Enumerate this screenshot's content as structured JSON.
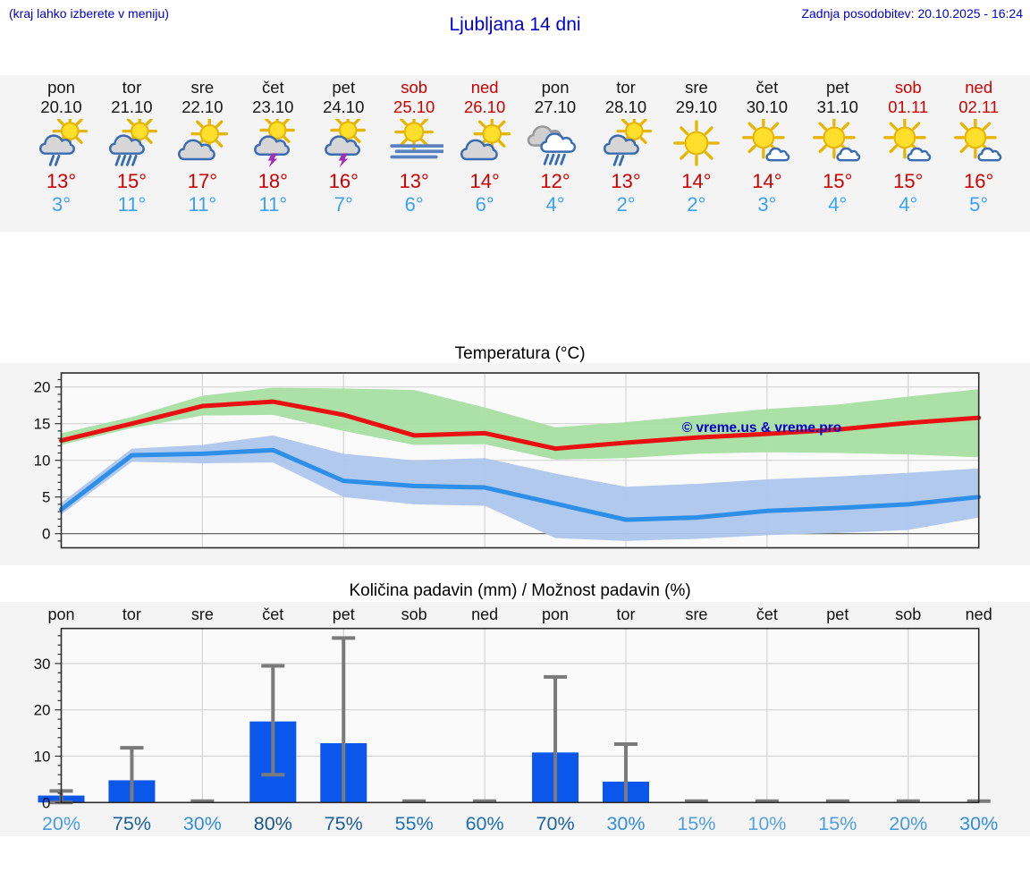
{
  "header": {
    "menu_hint": "(kraj lahko izberete v meniju)",
    "title": "Ljubljana 14 dni",
    "last_update": "Zadnja posodobitev: 20.10.2025 - 16:24",
    "text_color": "#0000cc"
  },
  "watermark": "© vreme.us & vreme.pro",
  "colors": {
    "panel_bg": "#f4f4f4",
    "plot_bg": "#fafafa",
    "grid": "#d4d4d4",
    "frame": "#2b2b2b",
    "tmax_text": "#cc0000",
    "tmin_text": "#3aa2f2",
    "weekend_text": "#cc0000",
    "max_line": "#e81010",
    "min_line": "#2d8fe8",
    "max_band": "#a7dfa2",
    "min_band": "#aec6ed",
    "bar": "#0b57eb",
    "whisker": "#7a7a7a"
  },
  "days": [
    {
      "name": "pon",
      "date": "20.10",
      "weekend": false,
      "icon": "sun-cloud-rain",
      "tmax": "13°",
      "tmin": "3°"
    },
    {
      "name": "tor",
      "date": "21.10",
      "weekend": false,
      "icon": "sun-cloud-heavy-rain",
      "tmax": "15°",
      "tmin": "11°"
    },
    {
      "name": "sre",
      "date": "22.10",
      "weekend": false,
      "icon": "sun-cloud",
      "tmax": "17°",
      "tmin": "11°"
    },
    {
      "name": "čet",
      "date": "23.10",
      "weekend": false,
      "icon": "sun-cloud-storm",
      "tmax": "18°",
      "tmin": "11°"
    },
    {
      "name": "pet",
      "date": "24.10",
      "weekend": false,
      "icon": "sun-cloud-storm",
      "tmax": "16°",
      "tmin": "7°"
    },
    {
      "name": "sob",
      "date": "25.10",
      "weekend": true,
      "icon": "sun-fog",
      "tmax": "13°",
      "tmin": "6°"
    },
    {
      "name": "ned",
      "date": "26.10",
      "weekend": true,
      "icon": "sun-cloud",
      "tmax": "14°",
      "tmin": "6°"
    },
    {
      "name": "pon",
      "date": "27.10",
      "weekend": false,
      "icon": "cloud-rain",
      "tmax": "12°",
      "tmin": "4°"
    },
    {
      "name": "tor",
      "date": "28.10",
      "weekend": false,
      "icon": "sun-cloud-rain",
      "tmax": "13°",
      "tmin": "2°"
    },
    {
      "name": "sre",
      "date": "29.10",
      "weekend": false,
      "icon": "sun",
      "tmax": "14°",
      "tmin": "2°"
    },
    {
      "name": "čet",
      "date": "30.10",
      "weekend": false,
      "icon": "sun-small-cloud",
      "tmax": "14°",
      "tmin": "3°"
    },
    {
      "name": "pet",
      "date": "31.10",
      "weekend": false,
      "icon": "sun-small-cloud",
      "tmax": "15°",
      "tmin": "4°"
    },
    {
      "name": "sob",
      "date": "01.11",
      "weekend": true,
      "icon": "sun-small-cloud",
      "tmax": "15°",
      "tmin": "4°"
    },
    {
      "name": "ned",
      "date": "02.11",
      "weekend": true,
      "icon": "sun-small-cloud",
      "tmax": "16°",
      "tmin": "5°"
    }
  ],
  "chart_data": [
    {
      "type": "line",
      "title": "Temperatura (°C)",
      "categories": [
        "pon 20.10",
        "tor 21.10",
        "sre 22.10",
        "čet 23.10",
        "pet 24.10",
        "sob 25.10",
        "ned 26.10",
        "pon 27.10",
        "tor 28.10",
        "sre 29.10",
        "čet 30.10",
        "pet 31.10",
        "sob 01.11",
        "ned 02.11"
      ],
      "y_ticks": [
        0,
        5,
        10,
        15,
        20
      ],
      "ylim": [
        -1.9,
        21.9
      ],
      "grid": true,
      "series": [
        {
          "name": "max-temp",
          "color": "#e81010",
          "values": [
            12.7,
            15.0,
            17.4,
            18.0,
            16.2,
            13.4,
            13.7,
            11.6,
            12.4,
            13.1,
            13.6,
            14.2,
            15.1,
            15.8
          ]
        },
        {
          "name": "min-temp",
          "color": "#2d8fe8",
          "values": [
            3.3,
            10.7,
            10.9,
            11.4,
            7.2,
            6.5,
            6.3,
            4.1,
            1.9,
            2.2,
            3.1,
            3.5,
            4.0,
            5.0
          ]
        }
      ],
      "bands": [
        {
          "name": "max-temp-range",
          "color": "#a7dfa2",
          "low": [
            12.1,
            14.4,
            16.1,
            16.2,
            14.0,
            12.1,
            12.2,
            10.1,
            10.3,
            10.9,
            11.1,
            11.0,
            10.8,
            10.4
          ],
          "high": [
            13.7,
            15.9,
            18.8,
            19.9,
            19.8,
            19.6,
            17.2,
            14.5,
            15.2,
            16.1,
            17.0,
            17.6,
            18.7,
            19.7
          ]
        },
        {
          "name": "min-temp-range",
          "color": "#aec6ed",
          "low": [
            2.6,
            9.8,
            9.6,
            9.7,
            5.0,
            4.0,
            3.8,
            -0.6,
            -1.0,
            -0.7,
            -0.2,
            0.1,
            0.5,
            2.2
          ],
          "high": [
            4.2,
            11.6,
            12.1,
            13.4,
            10.9,
            10.0,
            10.3,
            8.2,
            6.4,
            6.8,
            7.4,
            7.8,
            8.3,
            8.9
          ]
        }
      ],
      "watermark": "© vreme.us & vreme.pro"
    },
    {
      "type": "bar",
      "title": "Količina padavin (mm) / Možnost padavin (%)",
      "categories": [
        "pon",
        "tor",
        "sre",
        "čet",
        "pet",
        "sob",
        "ned",
        "pon",
        "tor",
        "sre",
        "čet",
        "pet",
        "sob",
        "ned"
      ],
      "y_ticks": [
        0,
        10,
        20,
        30
      ],
      "ylim": [
        0,
        37.5
      ],
      "grid": true,
      "bar_values_mm": [
        1.5,
        4.8,
        0,
        17.5,
        12.8,
        0,
        0,
        10.8,
        4.5,
        0,
        0,
        0,
        0,
        0
      ],
      "whisker_low": [
        0,
        -2,
        0,
        6,
        -2,
        0,
        0,
        -2,
        -2,
        0,
        0,
        0,
        0,
        0
      ],
      "whisker_high": [
        2.5,
        11.8,
        0.3,
        29.5,
        35.5,
        0.3,
        0.3,
        27.1,
        12.6,
        0.3,
        0.3,
        0.3,
        0.3,
        0.3
      ],
      "probabilities_pct": [
        20,
        75,
        30,
        80,
        75,
        55,
        60,
        70,
        30,
        15,
        10,
        15,
        20,
        30
      ]
    }
  ]
}
